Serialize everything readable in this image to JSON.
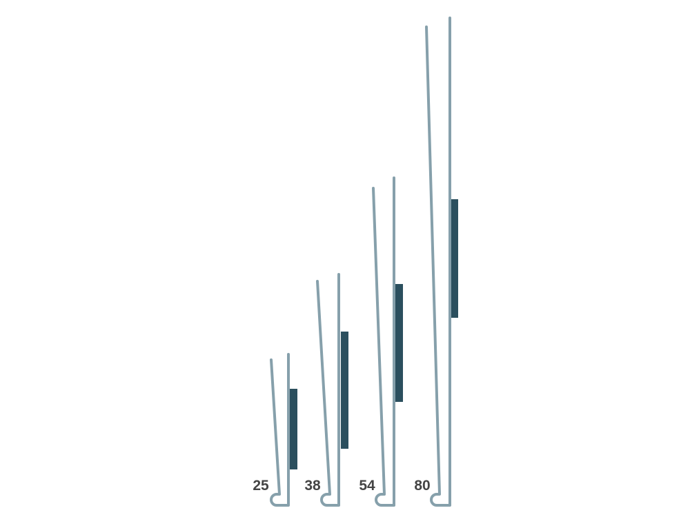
{
  "colors": {
    "profile": "#86a0ab",
    "bar": "#2b4f5e",
    "label": "#444444"
  },
  "profiles": [
    {
      "label": "25"
    },
    {
      "label": "38"
    },
    {
      "label": "54"
    },
    {
      "label": "80"
    }
  ]
}
